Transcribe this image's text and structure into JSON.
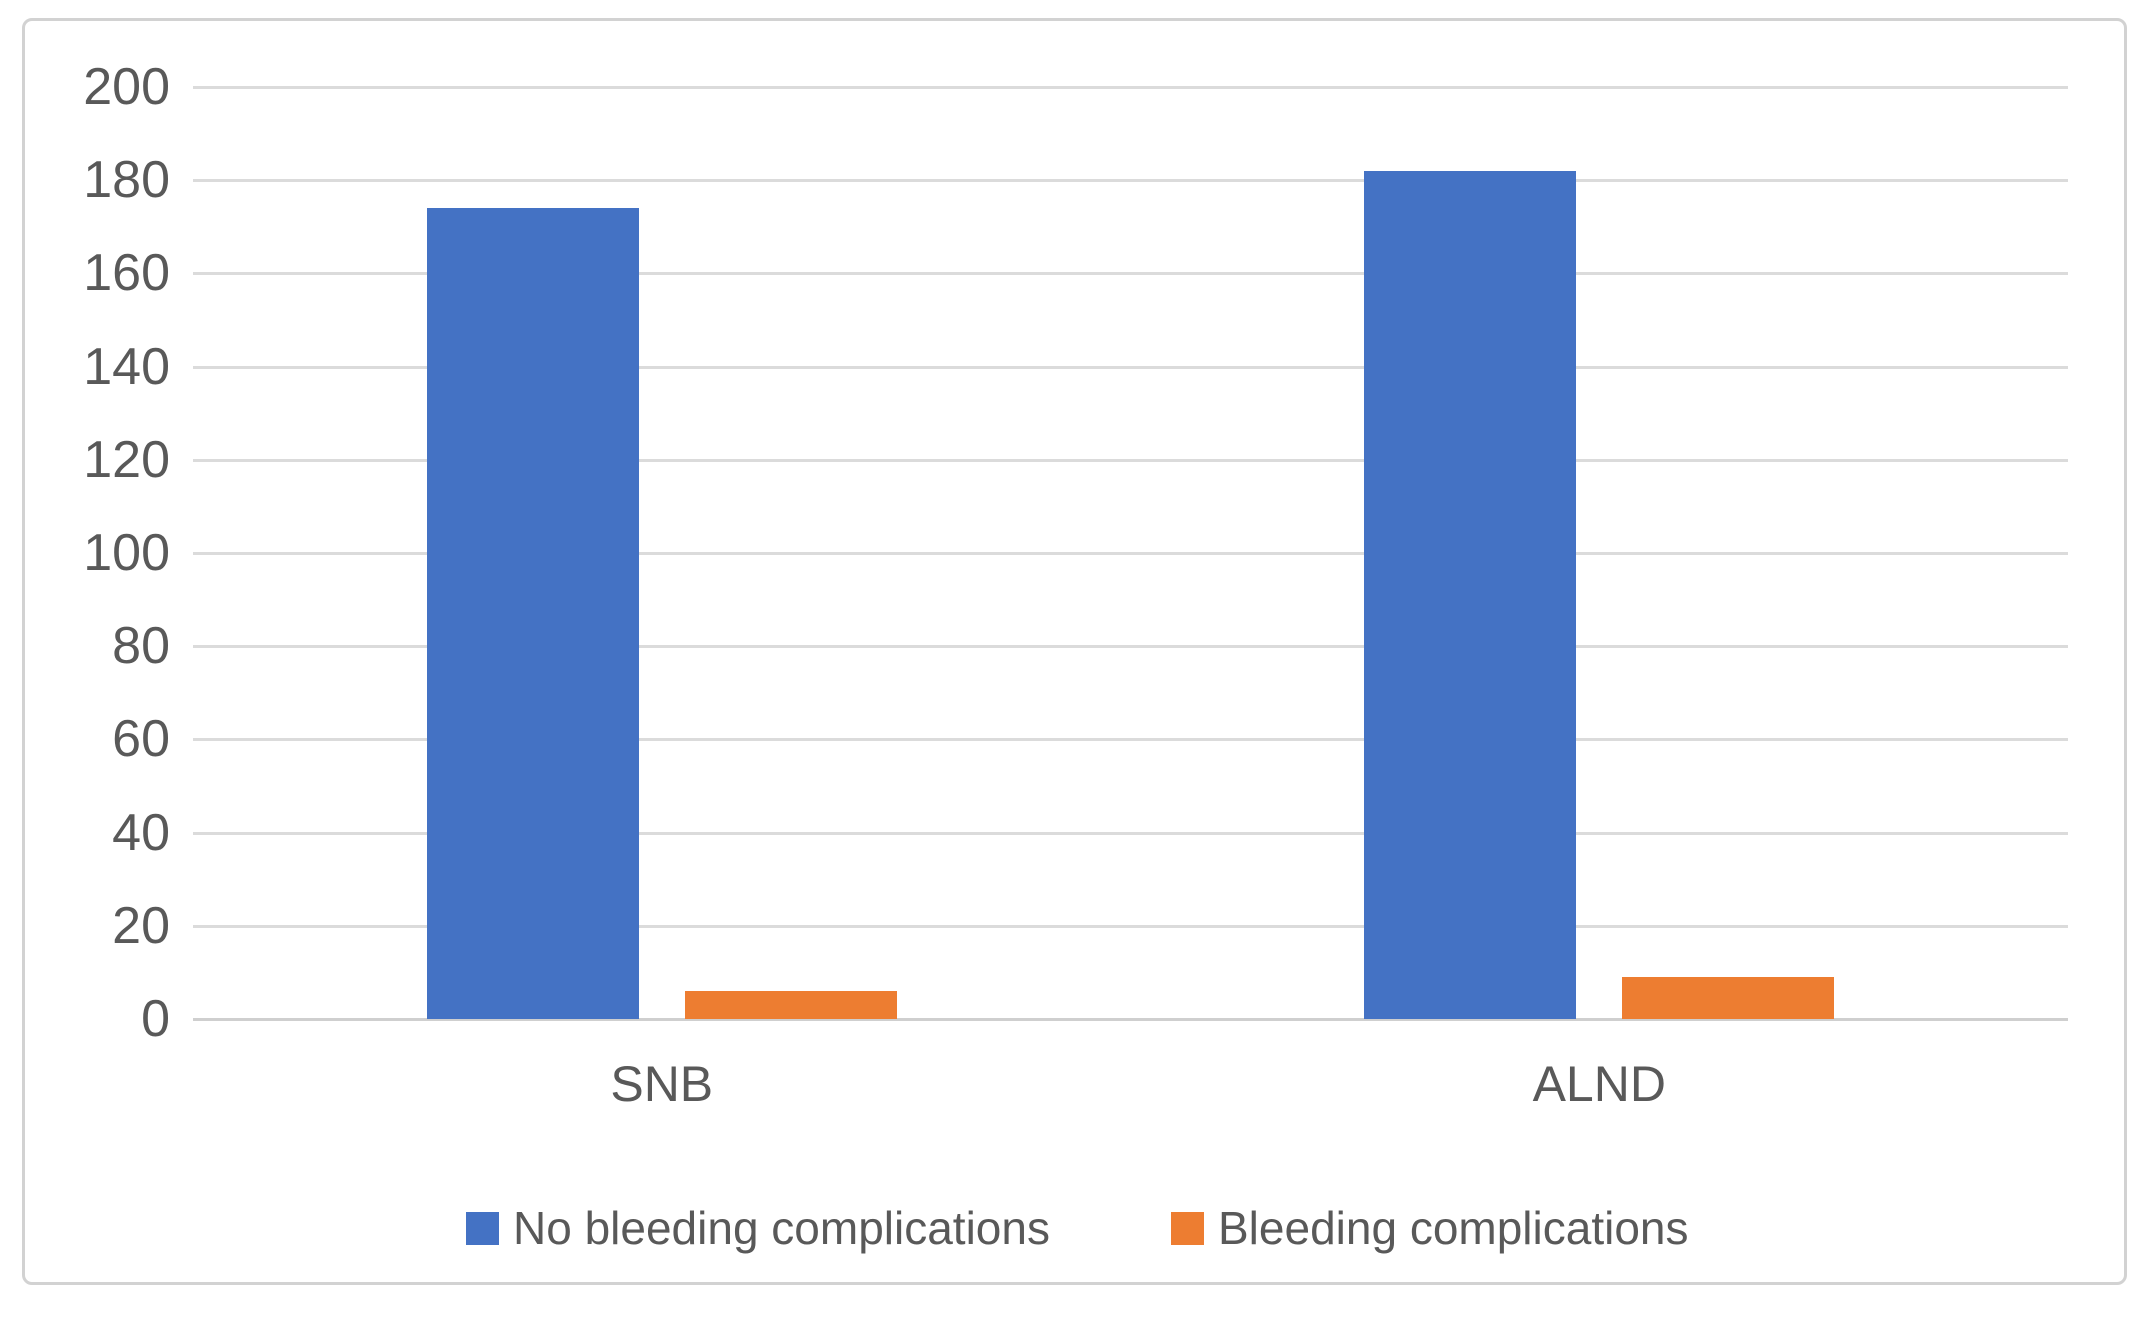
{
  "chart_data": {
    "type": "bar",
    "title": "",
    "xlabel": "",
    "ylabel": "",
    "categories": [
      "SNB",
      "ALND"
    ],
    "series": [
      {
        "name": "No bleeding complications",
        "color": "#4472C4",
        "values": [
          174,
          182
        ]
      },
      {
        "name": "Bleeding complications",
        "color": "#ED7D31",
        "values": [
          6,
          9
        ]
      }
    ],
    "ylim": [
      0,
      200
    ],
    "ytick_step": 20,
    "yticks": [
      "0",
      "20",
      "40",
      "60",
      "80",
      "100",
      "120",
      "140",
      "160",
      "180",
      "200"
    ],
    "grid": true,
    "gridline_color": "#DBDBDB",
    "baseline_color": "#CFCFCF",
    "tick_label_color": "#595959",
    "legend_position": "bottom",
    "frame_border_color": "#D2D2D2",
    "background_color": "#FFFFFF"
  }
}
